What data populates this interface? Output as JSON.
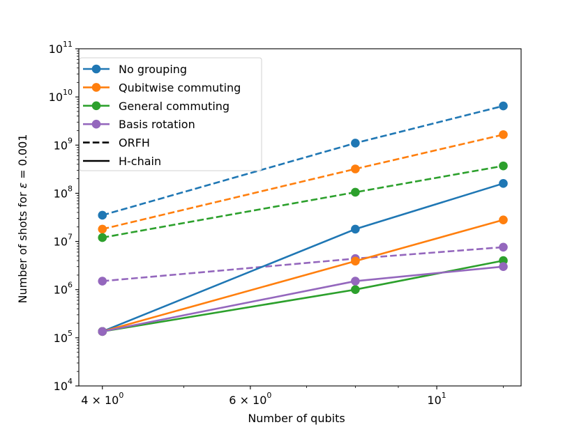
{
  "chart_data": {
    "type": "line",
    "title": "",
    "xlabel": "Number of qubits",
    "ylabel_prefix": "Number of shots for ",
    "ylabel_symbol": "ε",
    "ylabel_suffix": " = 0.001",
    "xscale": "log",
    "yscale": "log",
    "xlim": [
      3.75,
      12.6
    ],
    "ylim": [
      10000,
      100000000000
    ],
    "x": [
      4,
      8,
      12
    ],
    "x_ticks": [
      {
        "value": 4,
        "base": "4 × 10",
        "exp": "0"
      },
      {
        "value": 6,
        "base": "6 × 10",
        "exp": "0"
      },
      {
        "value": 10,
        "base": "10",
        "exp": "1"
      }
    ],
    "y_ticks": [
      {
        "value": 10000,
        "base": "10",
        "exp": "4"
      },
      {
        "value": 100000,
        "base": "10",
        "exp": "5"
      },
      {
        "value": 1000000,
        "base": "10",
        "exp": "6"
      },
      {
        "value": 10000000,
        "base": "10",
        "exp": "7"
      },
      {
        "value": 100000000,
        "base": "10",
        "exp": "8"
      },
      {
        "value": 1000000000,
        "base": "10",
        "exp": "9"
      },
      {
        "value": 10000000000,
        "base": "10",
        "exp": "10"
      },
      {
        "value": 100000000000,
        "base": "10",
        "exp": "11"
      }
    ],
    "legend_position": "top-left",
    "legend": [
      {
        "label": "No grouping",
        "kind": "marker",
        "color": "#1f77b4"
      },
      {
        "label": "Qubitwise commuting",
        "kind": "marker",
        "color": "#ff7f0e"
      },
      {
        "label": "General commuting",
        "kind": "marker",
        "color": "#2ca02c"
      },
      {
        "label": "Basis rotation",
        "kind": "marker",
        "color": "#9467bd"
      },
      {
        "label": "ORFH",
        "kind": "dashed",
        "color": "#000000"
      },
      {
        "label": "H-chain",
        "kind": "solid",
        "color": "#000000"
      }
    ],
    "series": [
      {
        "name": "No grouping (ORFH)",
        "method": "No grouping",
        "system": "ORFH",
        "style": "dashed",
        "color": "#1f77b4",
        "values": [
          35000000,
          1100000000,
          6500000000
        ]
      },
      {
        "name": "Qubitwise commuting (ORFH)",
        "method": "Qubitwise commuting",
        "system": "ORFH",
        "style": "dashed",
        "color": "#ff7f0e",
        "values": [
          18000000,
          320000000,
          1650000000
        ]
      },
      {
        "name": "General commuting (ORFH)",
        "method": "General commuting",
        "system": "ORFH",
        "style": "dashed",
        "color": "#2ca02c",
        "values": [
          12000000,
          105000000,
          370000000
        ]
      },
      {
        "name": "Basis rotation (ORFH)",
        "method": "Basis rotation",
        "system": "ORFH",
        "style": "dashed",
        "color": "#9467bd",
        "values": [
          1500000,
          4400000,
          7600000
        ]
      },
      {
        "name": "No grouping (H-chain)",
        "method": "No grouping",
        "system": "H-chain",
        "style": "solid",
        "color": "#1f77b4",
        "values": [
          135000,
          18000000,
          160000000
        ]
      },
      {
        "name": "Qubitwise commuting (H-chain)",
        "method": "Qubitwise commuting",
        "system": "H-chain",
        "style": "solid",
        "color": "#ff7f0e",
        "values": [
          135000,
          3900000,
          28000000
        ]
      },
      {
        "name": "General commuting (H-chain)",
        "method": "General commuting",
        "system": "H-chain",
        "style": "solid",
        "color": "#2ca02c",
        "values": [
          135000,
          1000000,
          4000000
        ]
      },
      {
        "name": "Basis rotation (H-chain)",
        "method": "Basis rotation",
        "system": "H-chain",
        "style": "solid",
        "color": "#9467bd",
        "values": [
          135000,
          1500000,
          3000000
        ]
      }
    ]
  }
}
